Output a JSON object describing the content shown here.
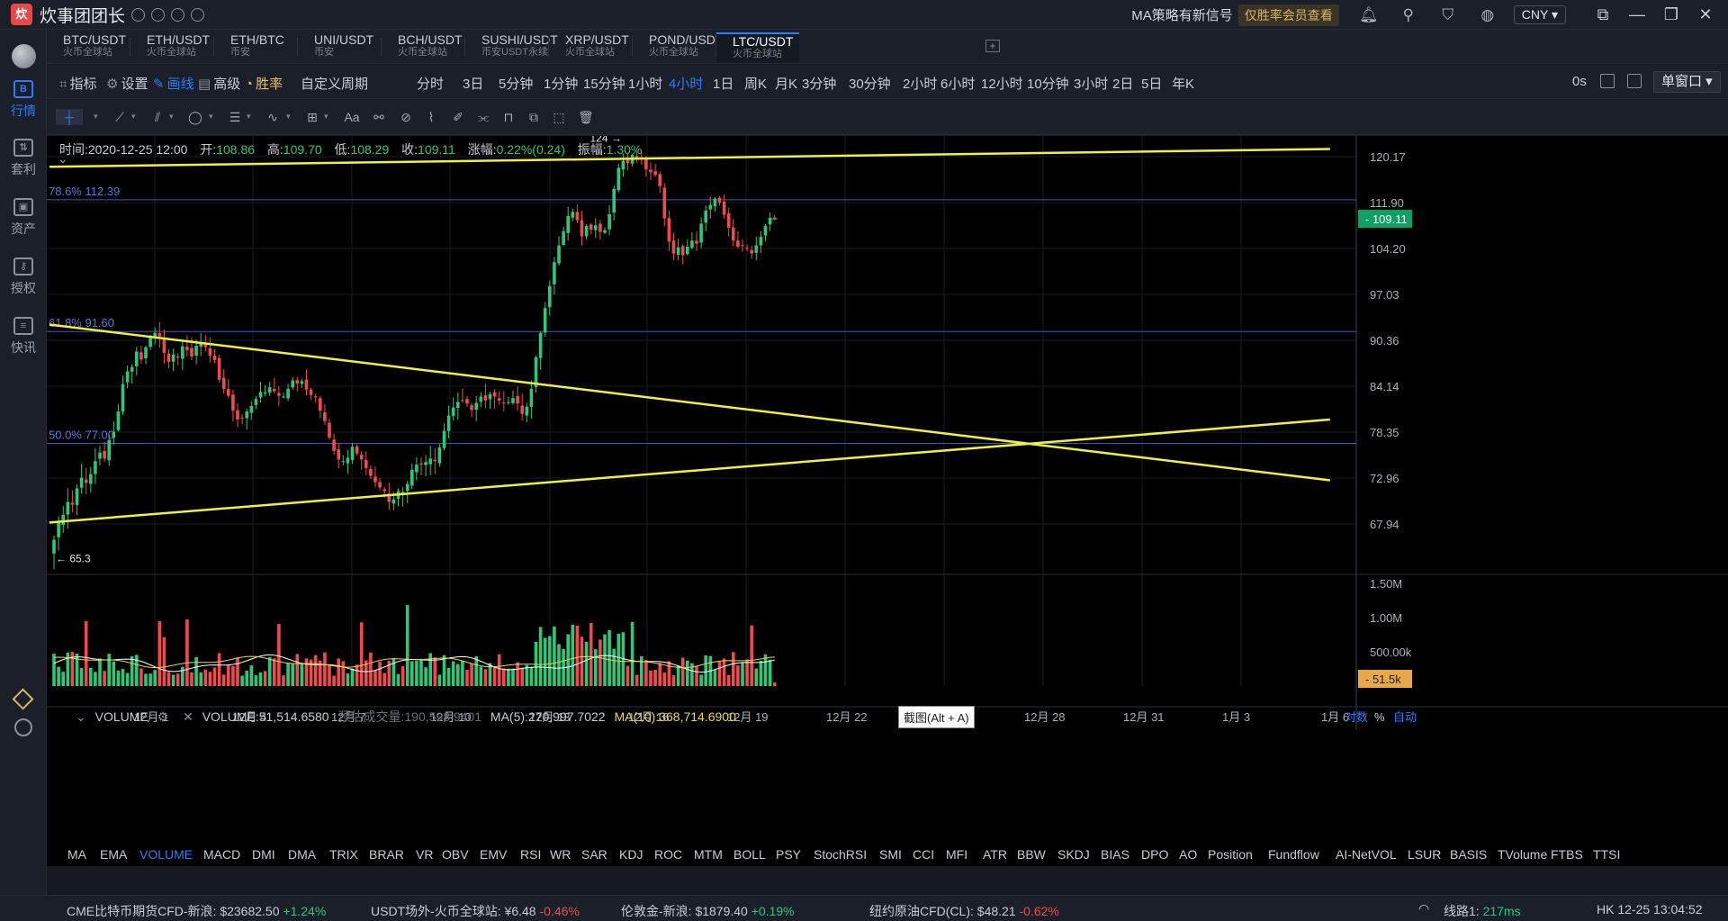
{
  "app": {
    "title": "炊事团团长",
    "signal_text": "MA策略有新信号",
    "vip_text": "仅胜率会员查看",
    "currency": "CNY"
  },
  "sidebar": [
    {
      "label": "行情",
      "icon": "market-icon",
      "active": true
    },
    {
      "label": "套利",
      "icon": "arbitrage-icon",
      "active": false
    },
    {
      "label": "资产",
      "icon": "wallet-icon",
      "active": false
    },
    {
      "label": "授权",
      "icon": "key-icon",
      "active": false
    },
    {
      "label": "快讯",
      "icon": "news-icon",
      "active": false
    }
  ],
  "tabs": [
    {
      "pair": "BTC/USDT",
      "exchange": "火币全球站"
    },
    {
      "pair": "ETH/USDT",
      "exchange": "火币全球站"
    },
    {
      "pair": "ETH/BTC",
      "exchange": "币安"
    },
    {
      "pair": "UNI/USDT",
      "exchange": "币安"
    },
    {
      "pair": "BCH/USDT",
      "exchange": "火币全球站"
    },
    {
      "pair": "SUSHI/USDT",
      "exchange": "币安USDT永续"
    },
    {
      "pair": "XRP/USDT",
      "exchange": "火币全球站"
    },
    {
      "pair": "POND/USDT",
      "exchange": "火币全球站"
    },
    {
      "pair": "LTC/USDT",
      "exchange": "火币全球站",
      "active": true
    }
  ],
  "toolbar": {
    "indicators": "指标",
    "settings": "设置",
    "draw": "画线",
    "advanced": "高级",
    "winrate": "胜率",
    "custom_period": "自定义周期",
    "periods": [
      "分时",
      "3日",
      "5分钟",
      "1分钟",
      "15分钟",
      "1小时",
      "4小时",
      "1日",
      "周K",
      "月K",
      "3分钟",
      "30分钟",
      "2小时",
      "6小时",
      "12小时",
      "10分钟",
      "3小时",
      "2日",
      "5日",
      "年K"
    ],
    "active_period": "4小时",
    "zero_s": "0s",
    "window_mode": "单窗口"
  },
  "ohlc": {
    "time_label": "时间:",
    "time": "2020-12-25 12:00",
    "open_label": "开:",
    "open": "108.86",
    "high_label": "高:",
    "high": "109.70",
    "low_label": "低:",
    "low": "108.29",
    "close_label": "收:",
    "close": "109.11",
    "change_label": "涨幅:",
    "change": "0.22%(0.24)",
    "amp_label": "振幅:",
    "amp": "1.30%"
  },
  "volume_info": {
    "title": "VOLUME",
    "volume": "VOLUME:51,514.6580",
    "estimated": "预估成交量:190,598.9401",
    "ma5": "MA(5):270,997.7022",
    "ma10": "MA(10):368,714.6900"
  },
  "tooltip": "截图(Alt + A)",
  "indicators": [
    "MA",
    "EMA",
    "VOLUME",
    "MACD",
    "DMI",
    "DMA",
    "TRIX",
    "BRAR",
    "VR",
    "OBV",
    "EMV",
    "RSI",
    "WR",
    "SAR",
    "KDJ",
    "ROC",
    "MTM",
    "BOLL",
    "PSY",
    "StochRSI",
    "SMI",
    "CCI",
    "MFI",
    "ATR",
    "BBW",
    "SKDJ",
    "BIAS",
    "DPO",
    "AO",
    "Position",
    "Fundflow",
    "AI-NetVOL",
    "LSUR",
    "BASIS",
    "TVolume",
    "FTBS",
    "TTSI"
  ],
  "active_indicator": "VOLUME",
  "ticker": [
    {
      "name": "CME比特币期货CFD-新浪:",
      "price": "$23682.50",
      "change": "+1.24%",
      "dir": "up"
    },
    {
      "name": "USDT场外-火币全球站:",
      "price": "¥6.48",
      "change": "-0.46%",
      "dir": "down"
    },
    {
      "name": "伦敦金-新浪:",
      "price": "$1879.40",
      "change": "+0.19%",
      "dir": "up"
    },
    {
      "name": "纽约原油CFD(CL):",
      "price": "$48.21",
      "change": "-0.62%",
      "dir": "down"
    }
  ],
  "status": {
    "line": "线路1:",
    "latency": "217ms",
    "clock": "HK 12-25 13:04:52"
  },
  "chart_data": {
    "type": "candlestick",
    "price_ticks": [
      120.17,
      111.9,
      104.2,
      97.03,
      90.36,
      84.14,
      78.35,
      72.96,
      67.94
    ],
    "price_ticks_text": [
      "120.17",
      "111.90",
      "104.20",
      "97.03",
      "90.36",
      "84.14",
      "78.35",
      "72.96",
      "67.94"
    ],
    "last_price": "109.11",
    "volume_ticks": [
      1500000,
      1000000,
      500000
    ],
    "volume_ticks_text": [
      "1.50M",
      "1.00M",
      "500.00k"
    ],
    "last_volume": "51.5k",
    "x_labels": [
      "12月 1",
      "12月 4",
      "12月 7",
      "12月 10",
      "12月 13",
      "12月 16",
      "12月 19",
      "12月 22",
      "12月 25",
      "12月 28",
      "12月 31",
      "1月 3",
      "1月 6"
    ],
    "axis_toggle": {
      "log": "对数",
      "percent": "%",
      "auto": "自动"
    },
    "fib_levels": [
      {
        "label": "78.6% 112.39",
        "price": 112.39
      },
      {
        "label": "61.8% 91.60",
        "price": 91.6
      },
      {
        "label": "50.0% 77.00",
        "price": 77.0
      }
    ],
    "annotations": {
      "high_label": "124 →",
      "high_price": 124,
      "low_label": "← 65.3",
      "low_price": 65.3
    },
    "trendlines": [
      {
        "from": {
          "bar": -1,
          "price": 118.3
        },
        "to": {
          "bar": 278,
          "price": 121.6
        }
      },
      {
        "from": {
          "bar": -1,
          "price": 92.6
        },
        "to": {
          "bar": 278,
          "price": 72.7
        }
      },
      {
        "from": {
          "bar": -1,
          "price": 68.1
        },
        "to": {
          "bar": 278,
          "price": 79.9
        }
      }
    ],
    "candles_closes": [
      66.3,
      68.1,
      68.9,
      70.3,
      70.0,
      71.8,
      73.0,
      72.4,
      73.4,
      74.9,
      75.9,
      75.2,
      77.4,
      78.4,
      80.9,
      84.4,
      86.1,
      86.7,
      88.8,
      87.7,
      89.4,
      90.7,
      91.4,
      90.9,
      88.6,
      87.4,
      88.4,
      88.0,
      89.5,
      89.0,
      88.1,
      89.6,
      90.1,
      89.4,
      88.2,
      87.6,
      85.0,
      83.8,
      82.9,
      81.0,
      79.9,
      80.1,
      80.9,
      81.6,
      82.5,
      83.4,
      83.3,
      84.0,
      83.5,
      82.9,
      82.8,
      83.8,
      84.9,
      84.5,
      84.8,
      83.7,
      83.0,
      82.7,
      81.0,
      79.7,
      77.7,
      76.1,
      75.1,
      74.9,
      75.3,
      76.6,
      75.8,
      75.1,
      74.1,
      73.2,
      72.5,
      71.9,
      71.5,
      70.3,
      70.6,
      71.5,
      71.4,
      72.3,
      73.9,
      74.5,
      74.5,
      74.8,
      75.2,
      74.9,
      76.5,
      78.5,
      80.4,
      81.4,
      82.1,
      82.3,
      81.9,
      81.1,
      82.0,
      82.8,
      82.3,
      83.1,
      82.8,
      82.3,
      82.0,
      82.1,
      82.6,
      81.9,
      80.6,
      81.5,
      83.8,
      88.0,
      91.4,
      95.0,
      98.3,
      102.0,
      104.7,
      107.0,
      109.6,
      110.3,
      108.9,
      106.2,
      107.9,
      107.3,
      108.0,
      106.9,
      107.2,
      109.9,
      114.3,
      118.1,
      119.4,
      119.0,
      120.5,
      119.8,
      120.0,
      117.8,
      117.3,
      116.8,
      114.8,
      109.2,
      105.3,
      103.4,
      104.4,
      103.1,
      104.5,
      105.5,
      105.0,
      108.3,
      110.5,
      111.5,
      112.6,
      111.9,
      109.8,
      107.6,
      105.5,
      104.5,
      104.6,
      104.2,
      103.4,
      104.7,
      106.1,
      107.9,
      109.3,
      109.1
    ],
    "volume_series_sample": [
      420000,
      380000,
      350000,
      310000,
      300000,
      280000,
      320000,
      260000,
      240000
    ]
  }
}
